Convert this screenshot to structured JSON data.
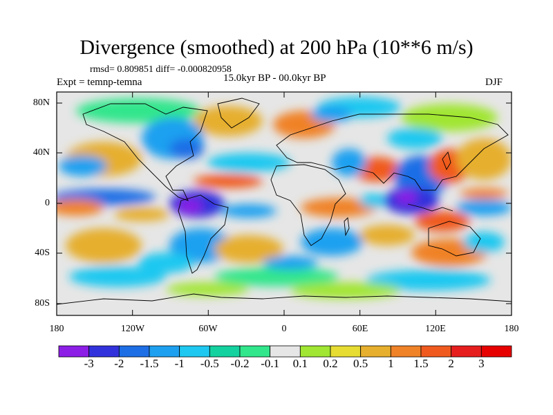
{
  "title": "Divergence (smoothed) at 200 hPa (10**6 m/s)",
  "stats": "rmsd= 0.809851  diff= -0.000820958",
  "experiment": "Expt = temnp-temna",
  "period": "15.0kyr BP - 00.0kyr BP",
  "season": "DJF",
  "lat_ticks": [
    "80N",
    "40N",
    "0",
    "40S",
    "80S"
  ],
  "lon_ticks": [
    "180",
    "120W",
    "60W",
    "0",
    "60E",
    "120E",
    "180"
  ],
  "colorbar": {
    "labels": [
      "-3",
      "-2",
      "-1.5",
      "-1",
      "-0.5",
      "-0.2",
      "-0.1",
      "0.1",
      "0.2",
      "0.5",
      "1",
      "1.5",
      "2",
      "3"
    ],
    "colors": [
      "#8c1ee6",
      "#3232dc",
      "#1e6ee6",
      "#1ea0f0",
      "#1ec8f0",
      "#14d2a0",
      "#32e68c",
      "#e6e6e6",
      "#a0e632",
      "#e6dc32",
      "#e6af2d",
      "#f08228",
      "#f05a1e",
      "#e61e1e",
      "#e60000"
    ]
  }
}
